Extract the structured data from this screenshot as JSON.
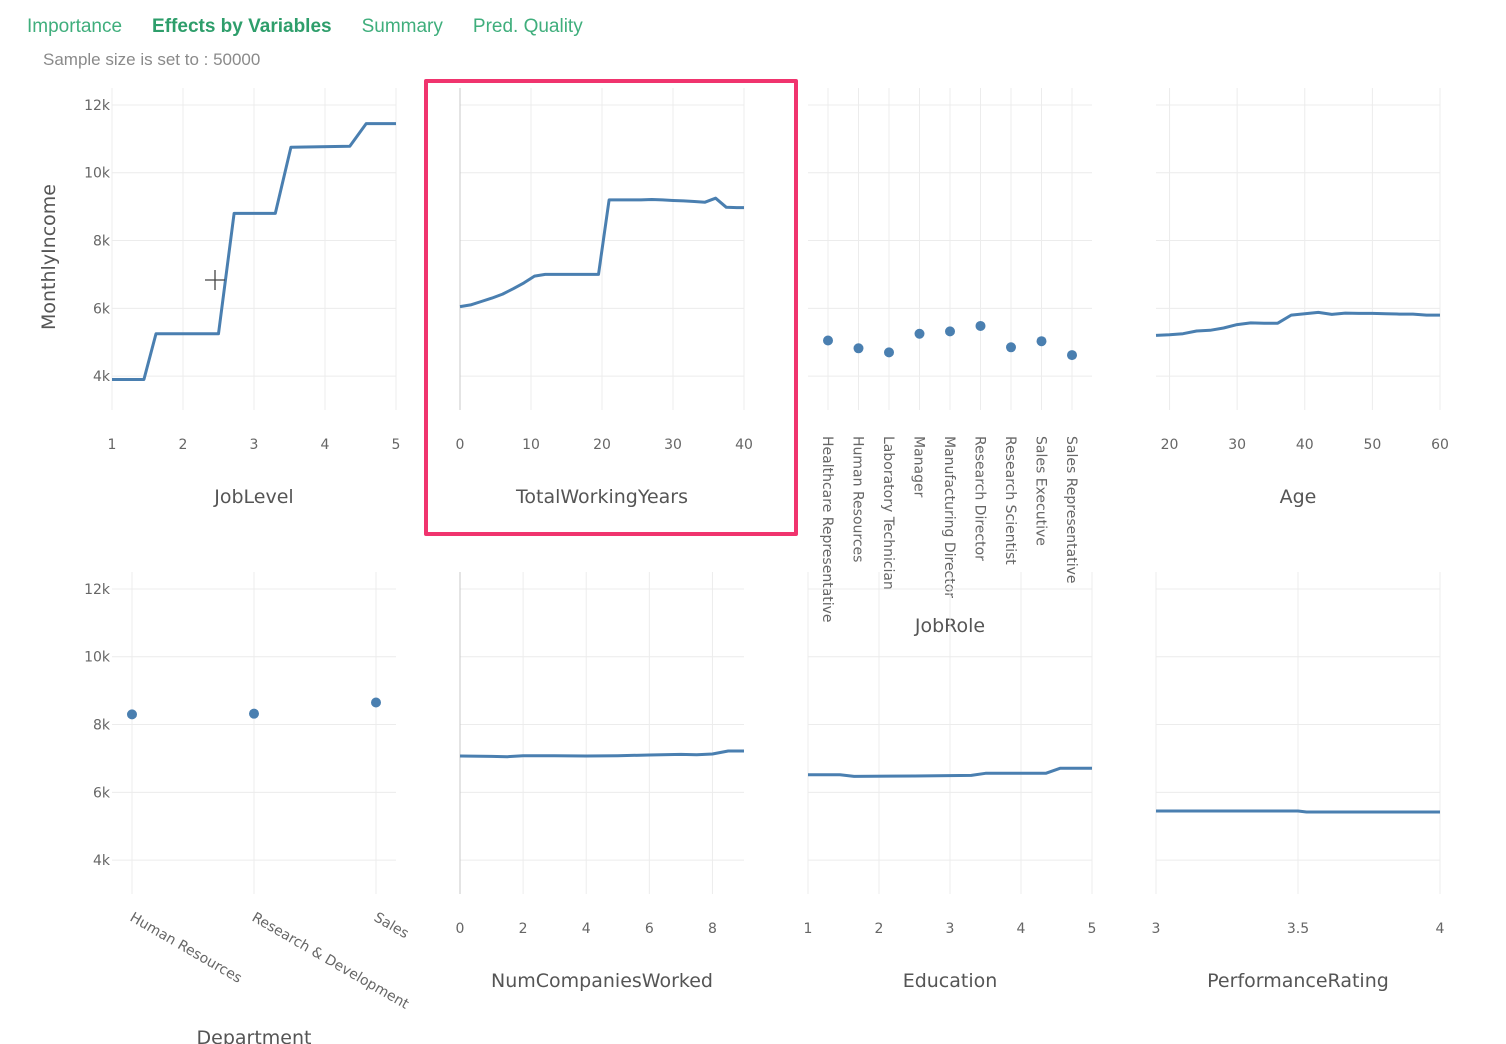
{
  "tabs": [
    {
      "label": "Importance",
      "active": false
    },
    {
      "label": "Effects by Variables",
      "active": true
    },
    {
      "label": "Summary",
      "active": false
    },
    {
      "label": "Pred. Quality",
      "active": false
    }
  ],
  "sample_note": "Sample size is set to : 50000",
  "colors": {
    "tab": "#3fae7c",
    "series": "#4a7fb0",
    "highlight": "#f0346e"
  },
  "chart_data": [
    {
      "type": "line",
      "xlabel": "JobLevel",
      "ylabel": "MonthlyIncome",
      "xlim": [
        1,
        5
      ],
      "ylim": [
        3000,
        12500
      ],
      "xticks": [
        1,
        2,
        3,
        4,
        5
      ],
      "xtick_labels": [
        "1",
        "2",
        "3",
        "4",
        "5"
      ],
      "yticks": [
        4000,
        6000,
        8000,
        10000,
        12000
      ],
      "ytick_labels": [
        "4k",
        "6k",
        "8k",
        "10k",
        "12k"
      ],
      "x": [
        1,
        1.45,
        1.62,
        2.5,
        2.72,
        3.3,
        3.52,
        4.35,
        4.58,
        5
      ],
      "y": [
        3900,
        3900,
        5250,
        5250,
        8800,
        8800,
        10750,
        10780,
        11450,
        11450
      ]
    },
    {
      "type": "line",
      "xlabel": "TotalWorkingYears",
      "ylabel": "",
      "highlighted": true,
      "xlim": [
        0,
        40
      ],
      "ylim": [
        3000,
        12500
      ],
      "xticks": [
        0,
        10,
        20,
        30,
        40
      ],
      "xtick_labels": [
        "0",
        "10",
        "20",
        "30",
        "40"
      ],
      "yticks": [
        4000,
        6000,
        8000,
        10000,
        12000
      ],
      "x": [
        0,
        1.5,
        3,
        4.5,
        6,
        7.5,
        9,
        10.5,
        12,
        13.5,
        15,
        16.5,
        18,
        19.5,
        21,
        22.5,
        24,
        25.5,
        27,
        28.5,
        30,
        31.5,
        33,
        34.5,
        36,
        37.5,
        39,
        40
      ],
      "y": [
        6050,
        6100,
        6200,
        6300,
        6420,
        6580,
        6750,
        6950,
        7000,
        7000,
        7000,
        7000,
        7000,
        7000,
        9200,
        9200,
        9200,
        9200,
        9210,
        9200,
        9180,
        9170,
        9150,
        9130,
        9250,
        8980,
        8970,
        8970
      ]
    },
    {
      "type": "scatter",
      "xlabel": "JobRole",
      "ylabel": "",
      "ylim": [
        3000,
        12500
      ],
      "yticks": [
        4000,
        6000,
        8000,
        10000,
        12000
      ],
      "categories": [
        "Healthcare Representative",
        "Human Resources",
        "Laboratory Technician",
        "Manager",
        "Manufacturing Director",
        "Research Director",
        "Research Scientist",
        "Sales Executive",
        "Sales Representative"
      ],
      "values": [
        5050,
        4820,
        4700,
        5250,
        5320,
        5480,
        4850,
        5030,
        4620
      ]
    },
    {
      "type": "line",
      "xlabel": "Age",
      "ylabel": "",
      "xlim": [
        18,
        60
      ],
      "ylim": [
        3000,
        12500
      ],
      "xticks": [
        20,
        30,
        40,
        50,
        60
      ],
      "xtick_labels": [
        "20",
        "30",
        "40",
        "50",
        "60"
      ],
      "yticks": [
        4000,
        6000,
        8000,
        10000,
        12000
      ],
      "x": [
        18,
        20,
        22,
        24,
        26,
        28,
        30,
        32,
        34,
        36,
        38,
        40,
        42,
        44,
        46,
        48,
        50,
        52,
        54,
        56,
        58,
        60
      ],
      "y": [
        5200,
        5220,
        5250,
        5330,
        5350,
        5420,
        5520,
        5570,
        5560,
        5560,
        5800,
        5840,
        5880,
        5820,
        5860,
        5850,
        5850,
        5840,
        5830,
        5830,
        5800,
        5800
      ]
    },
    {
      "type": "scatter",
      "xlabel": "Department",
      "ylabel": "",
      "ylim": [
        3000,
        12500
      ],
      "yticks": [
        4000,
        6000,
        8000,
        10000,
        12000
      ],
      "ytick_labels": [
        "4k",
        "6k",
        "8k",
        "10k",
        "12k"
      ],
      "categories": [
        "Human Resources",
        "Research & Development",
        "Sales"
      ],
      "values": [
        8300,
        8320,
        8650
      ]
    },
    {
      "type": "line",
      "xlabel": "NumCompaniesWorked",
      "ylabel": "",
      "xlim": [
        0,
        9
      ],
      "ylim": [
        3000,
        12500
      ],
      "xticks": [
        0,
        2,
        4,
        6,
        8
      ],
      "xtick_labels": [
        "0",
        "2",
        "4",
        "6",
        "8"
      ],
      "yticks": [
        4000,
        6000,
        8000,
        10000,
        12000
      ],
      "x": [
        0,
        1,
        1.5,
        2,
        3,
        4,
        5,
        6,
        7,
        7.5,
        8,
        8.5,
        9
      ],
      "y": [
        7070,
        7060,
        7050,
        7080,
        7080,
        7070,
        7080,
        7100,
        7120,
        7110,
        7130,
        7220,
        7220
      ]
    },
    {
      "type": "line",
      "xlabel": "Education",
      "ylabel": "",
      "xlim": [
        1,
        5
      ],
      "ylim": [
        3000,
        12500
      ],
      "xticks": [
        1,
        2,
        3,
        4,
        5
      ],
      "xtick_labels": [
        "1",
        "2",
        "3",
        "4",
        "5"
      ],
      "yticks": [
        4000,
        6000,
        8000,
        10000,
        12000
      ],
      "x": [
        1,
        1.45,
        1.65,
        2.5,
        3.3,
        3.5,
        4.35,
        4.55,
        5
      ],
      "y": [
        6520,
        6520,
        6470,
        6480,
        6500,
        6560,
        6560,
        6710,
        6710
      ]
    },
    {
      "type": "line",
      "xlabel": "PerformanceRating",
      "ylabel": "",
      "xlim": [
        3,
        4
      ],
      "ylim": [
        3000,
        12500
      ],
      "xticks": [
        3,
        3.5,
        4
      ],
      "xtick_labels": [
        "3",
        "3.5",
        "4"
      ],
      "yticks": [
        4000,
        6000,
        8000,
        10000,
        12000
      ],
      "x": [
        3,
        3.5,
        3.53,
        4
      ],
      "y": [
        5450,
        5450,
        5420,
        5420
      ]
    }
  ]
}
